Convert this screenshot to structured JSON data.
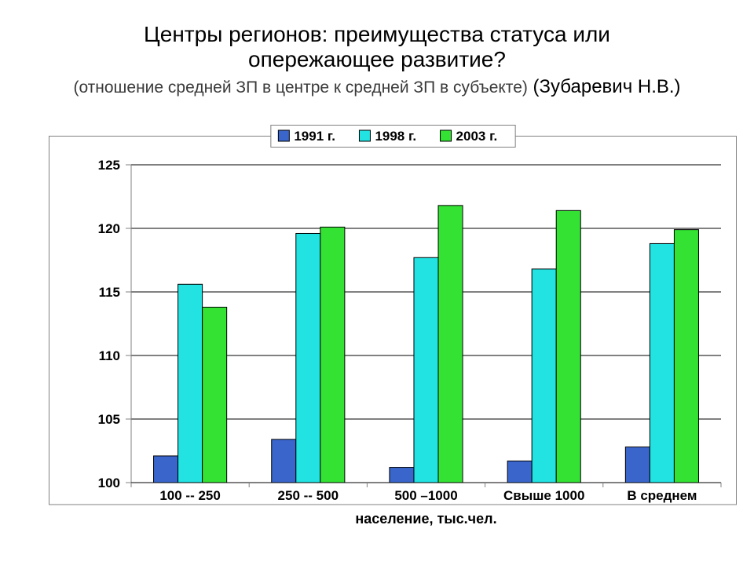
{
  "title": {
    "line1": "Центры регионов: преимущества статуса или",
    "line2": "опережающее развитие?",
    "sub_small": "(отношение средней ЗП в центре к средней ЗП в субъекте)",
    "author": " (Зубаревич Н.В.)"
  },
  "chart": {
    "type": "bar",
    "background_color": "#ffffff",
    "plot_border_color": "#808080",
    "grid_color": "#000000",
    "tick_color": "#808080",
    "ylim": [
      100,
      125
    ],
    "ytick_step": 5,
    "yticks": [
      100,
      105,
      110,
      115,
      120,
      125
    ],
    "xlabel": "население, тыс.чел.",
    "categories": [
      "100 -- 250",
      "250 --  500",
      "500 –1000",
      "Свыше 1000",
      "В среднем"
    ],
    "series": [
      {
        "name": "1991 г.",
        "color": "#3a66cc",
        "values": [
          102.1,
          103.4,
          101.2,
          101.7,
          102.8
        ]
      },
      {
        "name": "1998 г.",
        "color": "#22e2e2",
        "values": [
          115.6,
          119.6,
          117.7,
          116.8,
          118.8
        ]
      },
      {
        "name": "2003 г.",
        "color": "#33e233",
        "values": [
          113.8,
          120.1,
          121.8,
          121.4,
          119.9
        ]
      }
    ],
    "bar_border_color": "#000000",
    "title_fontsize": 28,
    "axis_fontsize": 17,
    "xlabel_fontsize": 18,
    "legend_fontsize": 17
  }
}
